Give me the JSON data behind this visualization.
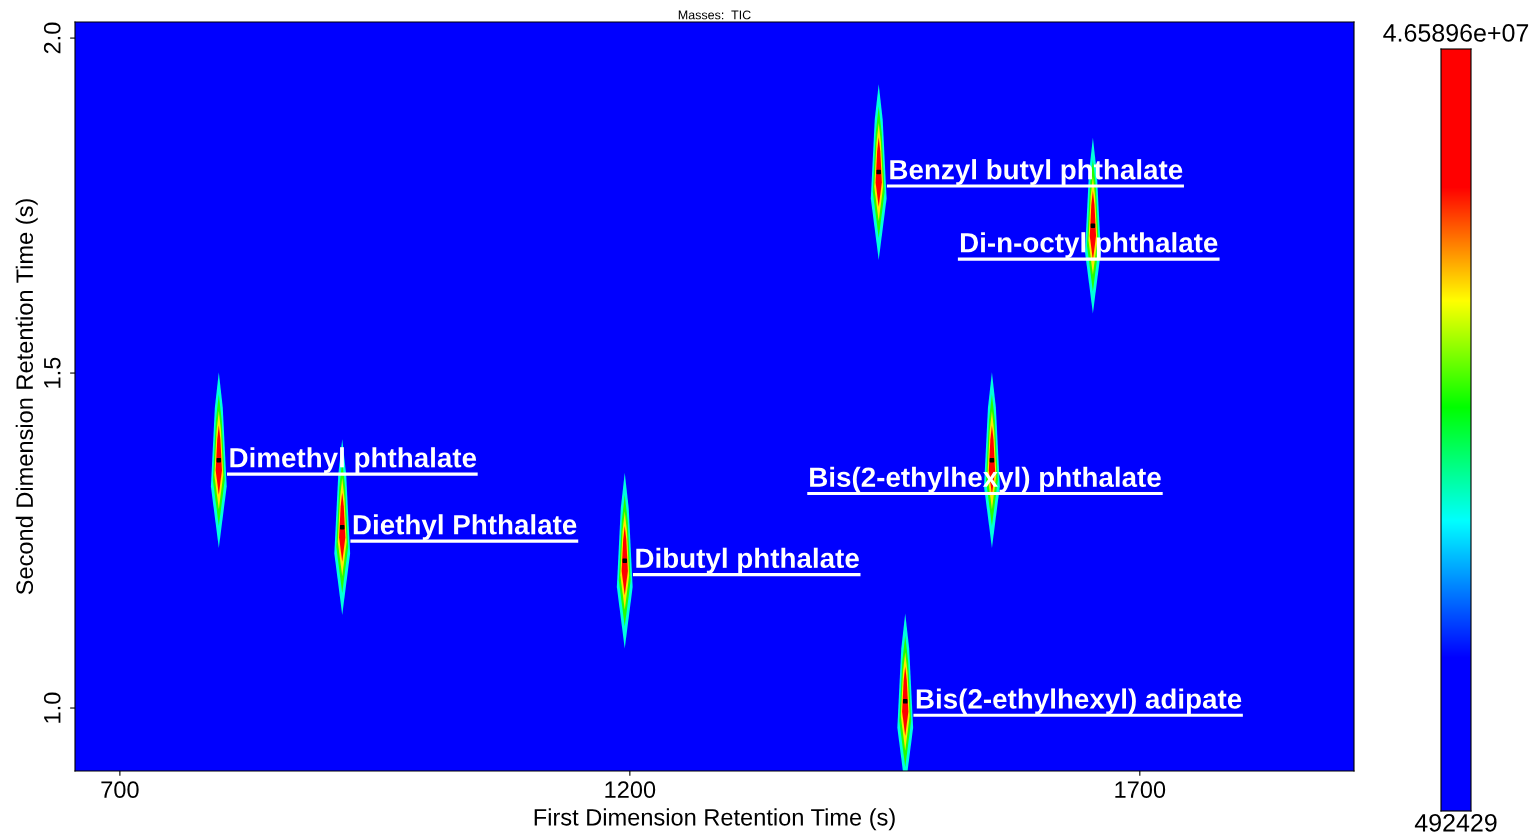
{
  "chart_data": {
    "type": "scatter",
    "title": "Masses:  TIC",
    "xlabel": "First Dimension Retention Time (s)",
    "ylabel": "Second Dimension Retention Time (s)",
    "x": [
      797,
      918,
      1195,
      1444,
      1470,
      1555,
      1654
    ],
    "values": [
      1.37,
      1.27,
      1.22,
      1.8,
      1.01,
      1.37,
      1.72
    ],
    "color": "#000000",
    "marker": "square",
    "xlim": [
      656,
      1910
    ],
    "ylim": [
      0.906,
      2.024
    ],
    "xticks": [
      700,
      1200,
      1700
    ],
    "yticks": [
      {
        "value": 1.0,
        "label": "1.0"
      },
      {
        "value": 1.5,
        "label": "1.5"
      },
      {
        "value": 2.0,
        "label": "2.0"
      }
    ],
    "annotations": [
      {
        "text": "Dimethyl phthalate",
        "x": 797,
        "y": 1.37
      },
      {
        "text": "Diethyl Phthalate",
        "x": 918,
        "y": 1.27
      },
      {
        "text": "Dibutyl phthalate",
        "x": 1195,
        "y": 1.22
      },
      {
        "text": "Benzyl butyl phthalate",
        "x": 1444,
        "y": 1.8
      },
      {
        "text": "Bis(2-ethylhexyl) adipate",
        "x": 1470,
        "y": 1.01
      },
      {
        "text": "Bis(2-ethylhexyl) phthalate",
        "x": 1555,
        "y": 1.37
      },
      {
        "text": "Di-n-octyl phthalate",
        "x": 1654,
        "y": 1.72
      },
      "4.65896e+07",
      "492429"
    ],
    "grid": false,
    "legend": false
  }
}
